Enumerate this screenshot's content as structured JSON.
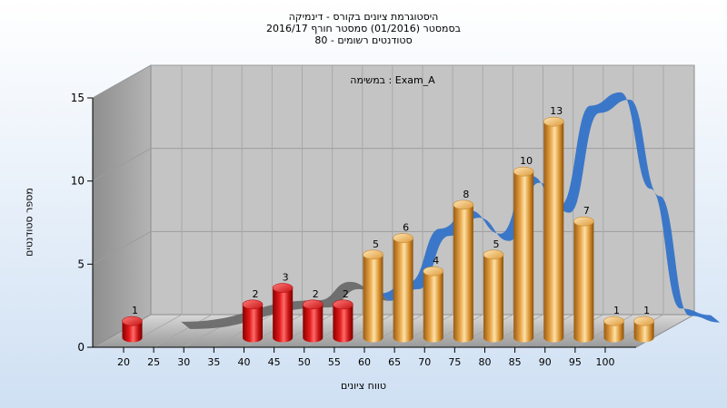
{
  "title_lines": [
    "היסטוגרמת ציונים בקורס - דינמיקה",
    "בסמסטר  (01/2016)  סמסטר חורף  2016/17",
    "סטודנטים רשומים - 80"
  ],
  "colors": {
    "bar_fail": "#dd1a1a",
    "bar_pass": "#e9a64a",
    "ribbon": "#3473c8",
    "ribbon_muted": "#666666",
    "wall": "#c4c4c4"
  },
  "chart_data": {
    "type": "bar",
    "subtitle": "Exam_A : במשימה",
    "xlabel": "טווח ציונים",
    "ylabel": "מספר סטודנטים",
    "ylim": [
      0,
      15
    ],
    "yticks": [
      0,
      5,
      10,
      15
    ],
    "xticks": [
      20,
      25,
      30,
      35,
      40,
      45,
      50,
      55,
      60,
      65,
      70,
      75,
      80,
      85,
      90,
      95,
      100
    ],
    "grid": true,
    "bars": [
      {
        "x": 20,
        "value": 1,
        "color": "fail"
      },
      {
        "x": 40,
        "value": 2,
        "color": "fail"
      },
      {
        "x": 45,
        "value": 3,
        "color": "fail"
      },
      {
        "x": 50,
        "value": 2,
        "color": "fail"
      },
      {
        "x": 55,
        "value": 2,
        "color": "fail"
      },
      {
        "x": 60,
        "value": 5,
        "color": "pass"
      },
      {
        "x": 65,
        "value": 6,
        "color": "pass"
      },
      {
        "x": 70,
        "value": 4,
        "color": "pass"
      },
      {
        "x": 75,
        "value": 8,
        "color": "pass"
      },
      {
        "x": 80,
        "value": 5,
        "color": "pass"
      },
      {
        "x": 85,
        "value": 10,
        "color": "pass"
      },
      {
        "x": 90,
        "value": 13,
        "color": "pass"
      },
      {
        "x": 95,
        "value": 7,
        "color": "pass"
      },
      {
        "x": 100,
        "value": 1,
        "color": "pass"
      },
      {
        "x": 105,
        "value": 1,
        "color": "pass"
      }
    ],
    "ribbon": [
      {
        "x": 22,
        "y": 0
      },
      {
        "x": 45,
        "y": 1.3
      },
      {
        "x": 50,
        "y": 2.4
      },
      {
        "x": 55,
        "y": 1.7
      },
      {
        "x": 60,
        "y": 2.4
      },
      {
        "x": 65,
        "y": 5.6
      },
      {
        "x": 70,
        "y": 6.7
      },
      {
        "x": 75,
        "y": 5.3
      },
      {
        "x": 80,
        "y": 8.8
      },
      {
        "x": 85,
        "y": 7.0
      },
      {
        "x": 90,
        "y": 13.0
      },
      {
        "x": 95,
        "y": 13.8
      },
      {
        "x": 100,
        "y": 8.0
      },
      {
        "x": 105,
        "y": 0.8
      },
      {
        "x": 110,
        "y": 0.4
      }
    ]
  }
}
